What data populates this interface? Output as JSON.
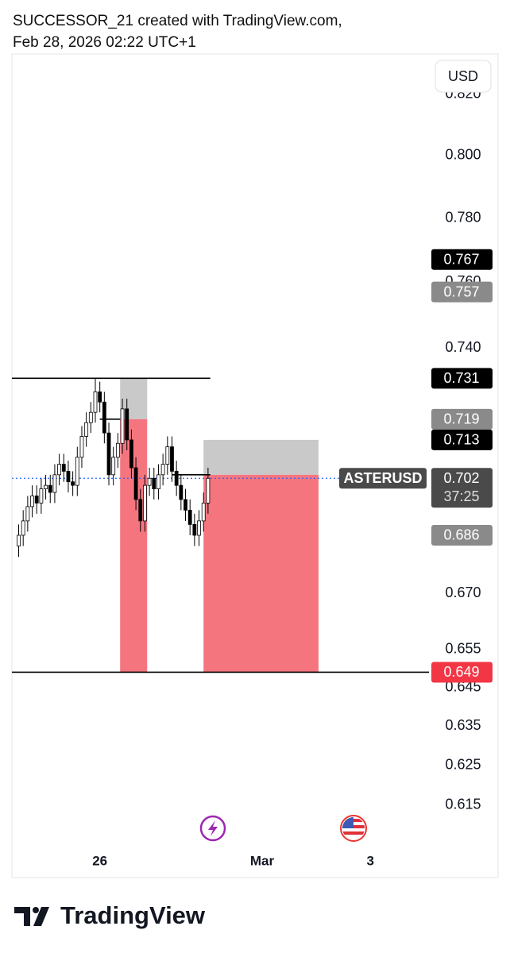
{
  "chart_data": {
    "type": "candlestick",
    "title": "SUCCESSOR_21 created with TradingView.com,",
    "subtitle": "Feb 28, 2026 02:22 UTC+1",
    "currency": "USD",
    "symbol": "ASTERUSD",
    "countdown": "37:25",
    "brand": "TradingView",
    "log_scale": true,
    "grid": false,
    "candle_color": "#000000",
    "up_fill": "#ffffff",
    "ylim": [
      0.604,
      0.833
    ],
    "yticks": [
      {
        "value": 0.82,
        "label": "0.820"
      },
      {
        "value": 0.8,
        "label": "0.800"
      },
      {
        "value": 0.78,
        "label": "0.780"
      },
      {
        "value": 0.76,
        "label": "0.760"
      },
      {
        "value": 0.74,
        "label": "0.740"
      },
      {
        "value": 0.67,
        "label": "0.670"
      },
      0.655,
      0.645,
      0.635,
      0.625,
      0.615
    ],
    "xlim": [
      -39,
      146
    ],
    "xticks": [
      {
        "value": 0,
        "label": "26"
      },
      {
        "value": 72,
        "label": "Mar"
      },
      {
        "value": 120,
        "label": "3"
      }
    ],
    "x": [
      -36,
      -34,
      -32,
      -30,
      -28,
      -26,
      -24,
      -22,
      -20,
      -18,
      -16,
      -14,
      -12,
      -10,
      -8,
      -6,
      -4,
      -2,
      0,
      2,
      4,
      6,
      8,
      10,
      12,
      14,
      16,
      18,
      20,
      22,
      24,
      26,
      28,
      30,
      32,
      34,
      36,
      38,
      40,
      42,
      44,
      46,
      48
    ],
    "open": [
      0.683,
      0.686,
      0.69,
      0.694,
      0.697,
      0.695,
      0.699,
      0.7,
      0.698,
      0.703,
      0.706,
      0.704,
      0.701,
      0.7,
      0.708,
      0.714,
      0.718,
      0.721,
      0.727,
      0.724,
      0.715,
      0.703,
      0.708,
      0.712,
      0.722,
      0.713,
      0.705,
      0.696,
      0.69,
      0.7,
      0.702,
      0.699,
      0.703,
      0.706,
      0.711,
      0.704,
      0.7,
      0.696,
      0.693,
      0.689,
      0.686,
      0.69,
      0.695
    ],
    "high": [
      0.689,
      0.693,
      0.697,
      0.7,
      0.7,
      0.702,
      0.703,
      0.703,
      0.706,
      0.709,
      0.709,
      0.707,
      0.704,
      0.711,
      0.717,
      0.721,
      0.724,
      0.731,
      0.73,
      0.727,
      0.718,
      0.711,
      0.715,
      0.725,
      0.725,
      0.716,
      0.708,
      0.699,
      0.703,
      0.705,
      0.705,
      0.706,
      0.709,
      0.714,
      0.714,
      0.707,
      0.703,
      0.699,
      0.696,
      0.692,
      0.693,
      0.698,
      0.705
    ],
    "low": [
      0.68,
      0.683,
      0.687,
      0.691,
      0.692,
      0.692,
      0.696,
      0.695,
      0.695,
      0.7,
      0.701,
      0.698,
      0.697,
      0.697,
      0.705,
      0.711,
      0.715,
      0.718,
      0.721,
      0.712,
      0.7,
      0.7,
      0.705,
      0.709,
      0.71,
      0.702,
      0.693,
      0.687,
      0.687,
      0.697,
      0.696,
      0.696,
      0.7,
      0.703,
      0.701,
      0.697,
      0.693,
      0.69,
      0.686,
      0.683,
      0.683,
      0.687,
      0.692
    ],
    "close": [
      0.686,
      0.69,
      0.694,
      0.697,
      0.695,
      0.699,
      0.7,
      0.698,
      0.703,
      0.706,
      0.704,
      0.701,
      0.7,
      0.708,
      0.714,
      0.718,
      0.721,
      0.727,
      0.724,
      0.715,
      0.703,
      0.708,
      0.712,
      0.722,
      0.713,
      0.705,
      0.696,
      0.69,
      0.7,
      0.702,
      0.699,
      0.703,
      0.706,
      0.711,
      0.704,
      0.7,
      0.696,
      0.693,
      0.689,
      0.686,
      0.69,
      0.695,
      0.702
    ],
    "lines": [
      {
        "value": 0.731,
        "x": [
          -39,
          49
        ]
      },
      {
        "value": 0.649,
        "x": [
          -39,
          146
        ]
      },
      {
        "value": 0.719,
        "x": [
          0,
          9
        ]
      },
      {
        "value": 0.703,
        "x": [
          32,
          49
        ]
      }
    ],
    "positions": [
      {
        "x": [
          9,
          21
        ],
        "stop": 0.731,
        "entry": 0.719,
        "target": 0.649
      },
      {
        "x": [
          46,
          97
        ],
        "stop": 0.713,
        "entry": 0.703,
        "target": 0.649
      }
    ],
    "stop_color": "#c9c9c9",
    "target_color": "#f5757f",
    "price_labels": [
      {
        "value": 0.767,
        "color": "#000000"
      },
      {
        "value": 0.757,
        "color": "#8a8a8a"
      },
      {
        "value": 0.731,
        "color": "#000000"
      },
      {
        "value": 0.719,
        "color": "#8a8a8a"
      },
      {
        "value": 0.713,
        "color": "#000000"
      },
      {
        "value": 0.686,
        "color": "#8a8a8a"
      },
      {
        "value": 0.649,
        "color": "#f23645"
      }
    ],
    "last_price": {
      "value": 0.702,
      "color": "#4a4a4a",
      "line_color": "#2962ff"
    }
  }
}
